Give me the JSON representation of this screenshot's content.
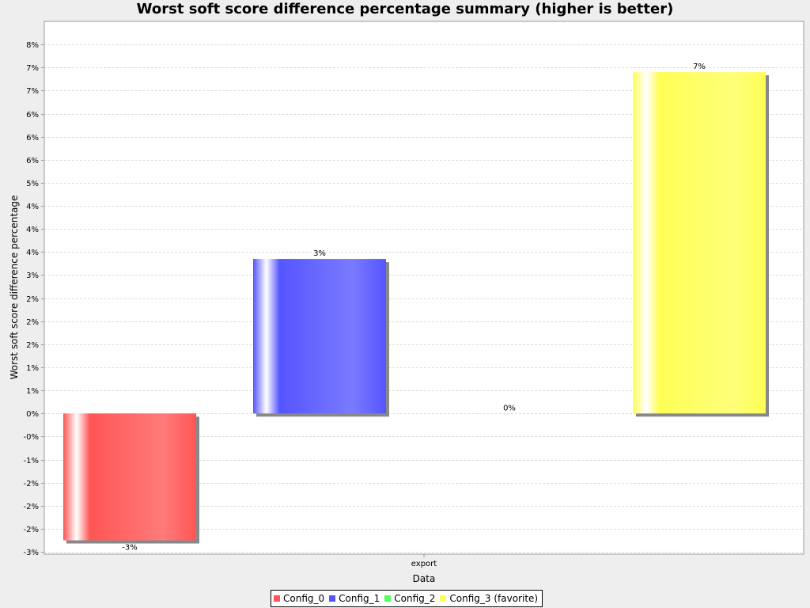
{
  "chart_data": {
    "type": "bar",
    "title": "Worst soft score difference percentage summary (higher is better)",
    "xlabel": "Data",
    "ylabel": "Worst soft score difference percentage",
    "categories": [
      "export"
    ],
    "series": [
      {
        "name": "Config_0",
        "values": [
          -2.75
        ],
        "label": "-3%",
        "color": "#ff5555"
      },
      {
        "name": "Config_1",
        "values": [
          3.35
        ],
        "label": "3%",
        "color": "#5555ff"
      },
      {
        "name": "Config_2",
        "values": [
          0
        ],
        "label": "0%",
        "color": "#55ff55"
      },
      {
        "name": "Config_3 (favorite)",
        "values": [
          7.4
        ],
        "label": "7%",
        "color": "#ffff55"
      }
    ],
    "ylim": [
      -3.05,
      8.5
    ],
    "yticks": [
      {
        "v": 8.0,
        "label": "8%"
      },
      {
        "v": 7.5,
        "label": "7%"
      },
      {
        "v": 7.0,
        "label": "7%"
      },
      {
        "v": 6.5,
        "label": "6%"
      },
      {
        "v": 6.0,
        "label": "6%"
      },
      {
        "v": 5.5,
        "label": "6%"
      },
      {
        "v": 5.0,
        "label": "5%"
      },
      {
        "v": 4.5,
        "label": "4%"
      },
      {
        "v": 4.0,
        "label": "4%"
      },
      {
        "v": 3.5,
        "label": "4%"
      },
      {
        "v": 3.0,
        "label": "3%"
      },
      {
        "v": 2.5,
        "label": "2%"
      },
      {
        "v": 2.0,
        "label": "2%"
      },
      {
        "v": 1.5,
        "label": "2%"
      },
      {
        "v": 1.0,
        "label": "1%"
      },
      {
        "v": 0.5,
        "label": "1%"
      },
      {
        "v": 0.0,
        "label": "0%"
      },
      {
        "v": -0.5,
        "label": "-0%"
      },
      {
        "v": -1.0,
        "label": "-1%"
      },
      {
        "v": -1.5,
        "label": "-2%"
      },
      {
        "v": -2.0,
        "label": "-2%"
      },
      {
        "v": -2.5,
        "label": "-2%"
      },
      {
        "v": -3.0,
        "label": "-3%"
      }
    ],
    "grid": true,
    "legend": "bottom"
  }
}
